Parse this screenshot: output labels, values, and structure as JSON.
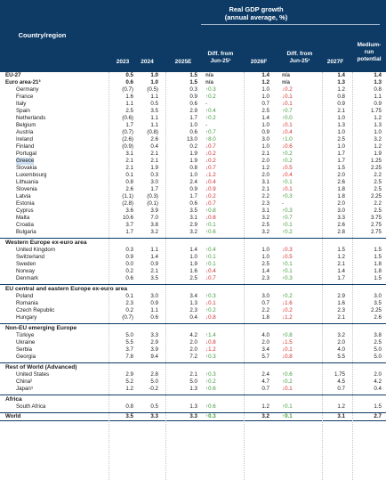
{
  "header": {
    "title": "Real GDP growth\n(annual average, %)",
    "region_label": "Country/region",
    "cols": [
      "2023",
      "2024",
      "2025E",
      "Diff. from\nJun-25¹",
      "2026F",
      "Diff. from\nJun-25¹",
      "2027F",
      "Medium-\nrun\npotential"
    ]
  },
  "groups": [
    {
      "title": "",
      "rows": [
        {
          "name": "EU-27",
          "bold": true,
          "v": [
            "0.5",
            "1.0",
            "1.5",
            "n/a",
            "1.4",
            "n/a",
            "1.4",
            "1.4"
          ],
          "d1": "nc",
          "d2": "nc"
        },
        {
          "name": "Euro area-21³",
          "bold": true,
          "v": [
            "0.6",
            "1.0",
            "1.5",
            "n/a",
            "1.2",
            "n/a",
            "1.3",
            "1.3"
          ],
          "d1": "nc",
          "d2": "nc"
        },
        {
          "name": "Germany",
          "v": [
            "(0.7)",
            "(0.5)",
            "0.3",
            "↑0.3",
            "1.0",
            "↓0.2",
            "1.2",
            "0.8"
          ],
          "d1": "up",
          "d2": "dn"
        },
        {
          "name": "France",
          "v": [
            "1.6",
            "1.1",
            "0.9",
            "↑0.2",
            "1.0",
            "↓0.1",
            "0.8",
            "1.1"
          ],
          "d1": "up",
          "d2": "dn"
        },
        {
          "name": "Italy",
          "v": [
            "1.1",
            "0.5",
            "0.6",
            "-",
            "0.7",
            "↓0.1",
            "0.9",
            "0.9"
          ],
          "d1": "nc",
          "d2": "dn"
        },
        {
          "name": "Spain",
          "v": [
            "2.5",
            "3.5",
            "2.9",
            "↑0.4",
            "2.5",
            "↑0.7",
            "2.1",
            "1.75"
          ],
          "d1": "up",
          "d2": "up"
        },
        {
          "name": "Netherlands",
          "v": [
            "(0.6)",
            "1.1",
            "1.7",
            "↑0.2",
            "1.4",
            "↑0.0",
            "1.0",
            "1.2"
          ],
          "d1": "up",
          "d2": "up"
        },
        {
          "name": "Belgium",
          "v": [
            "1.7",
            "1.1",
            "1.0",
            "-",
            "1.0",
            "↓0.1",
            "1.3",
            "1.3"
          ],
          "d1": "nc",
          "d2": "dn"
        },
        {
          "name": "Austria",
          "v": [
            "(0.7)",
            "(0.8)",
            "0.6",
            "↑0.7",
            "0.9",
            "↓0.4",
            "1.0",
            "1.0"
          ],
          "d1": "up",
          "d2": "dn"
        },
        {
          "name": "Ireland",
          "v": [
            "(2.6)",
            "2.6",
            "13.0",
            "↑8.0",
            "3.0",
            "↑1.0",
            "2.5",
            "3.2"
          ],
          "d1": "up",
          "d2": "up"
        },
        {
          "name": "Finland",
          "v": [
            "(0.9)",
            "0.4",
            "0.2",
            "↓0.7",
            "1.0",
            "↓0.6",
            "1.0",
            "1.2"
          ],
          "d1": "dn",
          "d2": "dn"
        },
        {
          "name": "Portugal",
          "v": [
            "3.1",
            "2.1",
            "1.9",
            "↓0.2",
            "2.1",
            "↑0.2",
            "1.7",
            "1.9"
          ],
          "d1": "dn",
          "d2": "up"
        },
        {
          "name": "Greece",
          "hl": true,
          "v": [
            "2.1",
            "2.1",
            "1.9",
            "↓0.2",
            "2.0",
            "↑0.2",
            "1.7",
            "1.25"
          ],
          "d1": "dn",
          "d2": "up"
        },
        {
          "name": "Slovakia",
          "v": [
            "2.1",
            "1.9",
            "0.8",
            "↓0.7",
            "1.2",
            "↓0.5",
            "1.5",
            "2.25"
          ],
          "d1": "dn",
          "d2": "dn"
        },
        {
          "name": "Luxembourg",
          "v": [
            "0.1",
            "0.3",
            "1.0",
            "↓1.2",
            "2.0",
            "↓0.4",
            "2.0",
            "2.2"
          ],
          "d1": "dn",
          "d2": "dn"
        },
        {
          "name": "Lithuania",
          "v": [
            "0.8",
            "3.0",
            "2.4",
            "↓0.4",
            "3.1",
            "↑0.1",
            "2.6",
            "2.5"
          ],
          "d1": "dn",
          "d2": "up"
        },
        {
          "name": "Slovenia",
          "v": [
            "2.6",
            "1.7",
            "0.9",
            "↓0.9",
            "2.1",
            "↓0.1",
            "1.8",
            "2.5"
          ],
          "d1": "dn",
          "d2": "dn"
        },
        {
          "name": "Latvia",
          "v": [
            "(1.1)",
            "(0.3)",
            "1.7",
            "↓0.2",
            "2.2",
            "↑0.3",
            "1.8",
            "2.25"
          ],
          "d1": "dn",
          "d2": "up"
        },
        {
          "name": "Estonia",
          "v": [
            "(2.8)",
            "(0.1)",
            "0.6",
            "↓0.7",
            "2.3",
            "-",
            "2.0",
            "2.2"
          ],
          "d1": "dn",
          "d2": "nc"
        },
        {
          "name": "Cyprus",
          "v": [
            "3.6",
            "3.9",
            "3.5",
            "↑0.8",
            "3.1",
            "↑0.3",
            "3.0",
            "2.5"
          ],
          "d1": "up",
          "d2": "up"
        },
        {
          "name": "Malta",
          "v": [
            "10.6",
            "7.0",
            "3.1",
            "↓0.8",
            "3.2",
            "↑0.7",
            "3.3",
            "3.75"
          ],
          "d1": "dn",
          "d2": "up"
        },
        {
          "name": "Croatia",
          "v": [
            "3.7",
            "3.8",
            "2.9",
            "↑0.1",
            "2.5",
            "↑0.1",
            "2.6",
            "2.75"
          ],
          "d1": "up",
          "d2": "up"
        },
        {
          "name": "Bulgaria",
          "v": [
            "1.7",
            "3.2",
            "3.2",
            "↑0.6",
            "3.2",
            "↑0.2",
            "2.8",
            "2.75"
          ],
          "d1": "up",
          "d2": "up"
        }
      ]
    },
    {
      "title": "Western Europe ex-euro area",
      "rows": [
        {
          "name": "United Kingdom",
          "v": [
            "0.3",
            "1.1",
            "1.4",
            "↑0.4",
            "1.0",
            "↓0.3",
            "1.5",
            "1.5"
          ],
          "d1": "up",
          "d2": "dn"
        },
        {
          "name": "Switzerland",
          "v": [
            "0.9",
            "1.4",
            "1.0",
            "↑0.1",
            "1.0",
            "↓0.5",
            "1.2",
            "1.5"
          ],
          "d1": "up",
          "d2": "dn"
        },
        {
          "name": "Sweden",
          "v": [
            "0.0",
            "0.9",
            "1.9",
            "↑0.1",
            "2.5",
            "↑0.1",
            "2.1",
            "1.8"
          ],
          "d1": "up",
          "d2": "up"
        },
        {
          "name": "Norway",
          "v": [
            "0.2",
            "2.1",
            "1.6",
            "↓0.4",
            "1.4",
            "↑0.1",
            "1.4",
            "1.8"
          ],
          "d1": "dn",
          "d2": "up"
        },
        {
          "name": "Denmark",
          "v": [
            "0.6",
            "3.5",
            "2.5",
            "↓0.7",
            "2.3",
            "↑0.3",
            "1.7",
            "1.5"
          ],
          "d1": "dn",
          "d2": "up"
        }
      ]
    },
    {
      "title": "EU central and eastern Europe ex-euro area",
      "rows": [
        {
          "name": "Poland",
          "v": [
            "0.1",
            "3.0",
            "3.4",
            "↑0.3",
            "3.0",
            "↑0.2",
            "2.9",
            "3.0"
          ],
          "d1": "up",
          "d2": "up"
        },
        {
          "name": "Romania",
          "v": [
            "2.3",
            "0.9",
            "1.3",
            "↓0.1",
            "0.7",
            "↓1.6",
            "1.6",
            "3.5"
          ],
          "d1": "dn",
          "d2": "dn"
        },
        {
          "name": "Czech Republic",
          "v": [
            "0.2",
            "1.1",
            "2.3",
            "↑0.2",
            "2.2",
            "↓0.2",
            "2.3",
            "2.25"
          ],
          "d1": "up",
          "d2": "dn"
        },
        {
          "name": "Hungary",
          "v": [
            "(0.7)",
            "0.6",
            "0.4",
            "↓0.8",
            "1.8",
            "↓1.2",
            "2.1",
            "2.6"
          ],
          "d1": "dn",
          "d2": "dn"
        }
      ]
    },
    {
      "title": "Non-EU emerging Europe",
      "rows": [
        {
          "name": "Türkiye",
          "v": [
            "5.0",
            "3.3",
            "4.2",
            "↑1.4",
            "4.0",
            "↑0.8",
            "3.2",
            "3.8"
          ],
          "d1": "up",
          "d2": "up"
        },
        {
          "name": "Ukraine",
          "v": [
            "5.5",
            "2.9",
            "2.0",
            "↓0.8",
            "2.0",
            "↓1.5",
            "2.0",
            "2.5"
          ],
          "d1": "dn",
          "d2": "dn"
        },
        {
          "name": "Serbia",
          "v": [
            "3.7",
            "3.9",
            "2.0",
            "↓1.2",
            "3.4",
            "↓0.1",
            "4.0",
            "5.0"
          ],
          "d1": "dn",
          "d2": "dn"
        },
        {
          "name": "Georgia",
          "v": [
            "7.8",
            "9.4",
            "7.2",
            "↑0.3",
            "5.7",
            "↓0.8",
            "5.5",
            "5.0"
          ],
          "d1": "up",
          "d2": "dn"
        }
      ]
    },
    {
      "title": "Rest of World (Advanced)",
      "rows": [
        {
          "name": "United States",
          "v": [
            "2.9",
            "2.8",
            "2.1",
            "↑0.3",
            "2.4",
            "↑0.6",
            "1.75",
            "2.0"
          ],
          "d1": "up",
          "d2": "up"
        },
        {
          "name": "China²",
          "v": [
            "5.2",
            "5.0",
            "5.0",
            "↑0.2",
            "4.7",
            "↑0.2",
            "4.5",
            "4.2"
          ],
          "d1": "up",
          "d2": "up"
        },
        {
          "name": "Japan⁵",
          "v": [
            "1.2",
            "-0.2",
            "1.3",
            "↑0.6",
            "0.7",
            "↓0.1",
            "0.7",
            "0.4"
          ],
          "d1": "up",
          "d2": "dn"
        }
      ]
    },
    {
      "title": "Africa",
      "rows": [
        {
          "name": "South Africa",
          "v": [
            "0.8",
            "0.5",
            "1.3",
            "↑0.6",
            "1.2",
            "↑0.1",
            "1.2",
            "1.5"
          ],
          "d1": "up",
          "d2": "up"
        }
      ]
    }
  ],
  "world": {
    "name": "World",
    "v": [
      "3.5",
      "3.3",
      "3.3",
      "↑0.3",
      "3.2",
      "↑0.1",
      "3.1",
      "2.7"
    ],
    "d1": "up",
    "d2": "up"
  }
}
